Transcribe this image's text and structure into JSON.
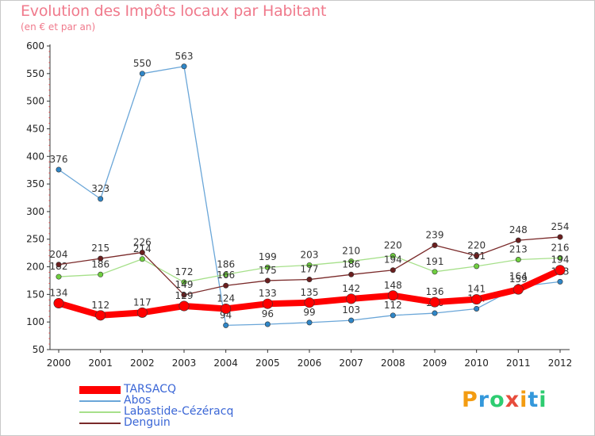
{
  "title": "Evolution des Impôts locaux par Habitant",
  "subtitle": "(en € et par an)",
  "logo": {
    "letters": [
      "P",
      "r",
      "o",
      "x",
      "i",
      "t",
      "i"
    ],
    "colors": [
      "#f39c12",
      "#3498db",
      "#2ecc71",
      "#e74c3c",
      "#f39c12",
      "#3498db",
      "#2ecc71"
    ]
  },
  "chart_data": {
    "type": "line",
    "title": "Evolution des Impôts locaux par Habitant",
    "subtitle": "(en € et par an)",
    "xlabel": "",
    "ylabel": "",
    "ylim": [
      50,
      600
    ],
    "yticks": [
      50,
      100,
      150,
      200,
      250,
      300,
      350,
      400,
      450,
      500,
      550,
      600
    ],
    "categories": [
      "2000",
      "2001",
      "2002",
      "2003",
      "2004",
      "2005",
      "2006",
      "2007",
      "2008",
      "2009",
      "2010",
      "2011",
      "2012"
    ],
    "grid": false,
    "legend_position": "bottom-left",
    "series": [
      {
        "name": "Abos",
        "color": "#6aa6d8",
        "point_color": "#2f86c7",
        "width": 1.3,
        "radius": 3.2,
        "values": [
          376,
          323,
          550,
          563,
          94,
          96,
          99,
          103,
          112,
          116,
          124,
          164,
          173
        ],
        "labels": [
          "376",
          "323",
          "550",
          "563",
          "94",
          "96",
          "99",
          "103",
          "112",
          "116",
          "124",
          "164",
          "173"
        ]
      },
      {
        "name": "Labastide-Cézéracq",
        "color": "#a6e08a",
        "point_color": "#6fcf3f",
        "width": 1.3,
        "radius": 3.2,
        "values": [
          182,
          186,
          214,
          172,
          186,
          199,
          203,
          210,
          220,
          191,
          201,
          213,
          216
        ],
        "labels": [
          "182",
          "186",
          "214",
          "172",
          "186",
          "199",
          "203",
          "210",
          "220",
          "191",
          "201",
          "213",
          "216"
        ]
      },
      {
        "name": "Denguin",
        "color": "#7a2a2a",
        "point_color": "#6b1f1f",
        "width": 1.3,
        "radius": 3.2,
        "values": [
          204,
          215,
          226,
          149,
          166,
          175,
          177,
          186,
          194,
          239,
          220,
          248,
          254
        ],
        "labels": [
          "204",
          "215",
          "226",
          "149",
          "166",
          "175",
          "177",
          "186",
          "194",
          "239",
          "220",
          "248",
          "254"
        ]
      },
      {
        "name": "TARSACQ",
        "color": "#ff0000",
        "point_color": "#ff0000",
        "width": 8,
        "radius": 6.2,
        "values": [
          134,
          112,
          117,
          129,
          124,
          133,
          135,
          142,
          148,
          136,
          141,
          159,
          194
        ],
        "labels": [
          "134",
          "112",
          "117",
          "129",
          "124",
          "133",
          "135",
          "142",
          "148",
          "136",
          "141",
          "159",
          "194"
        ]
      }
    ],
    "legend": [
      {
        "name": "TARSACQ",
        "color": "#ff0000",
        "text_color": "#3a66d6",
        "weight": 10
      },
      {
        "name": "Abos",
        "color": "#6aa6d8",
        "text_color": "#3a66d6",
        "weight": 2
      },
      {
        "name": "Labastide-Cézéracq",
        "color": "#a6e08a",
        "text_color": "#3a66d6",
        "weight": 2
      },
      {
        "name": "Denguin",
        "color": "#7a2a2a",
        "text_color": "#3a66d6",
        "weight": 2
      }
    ]
  }
}
